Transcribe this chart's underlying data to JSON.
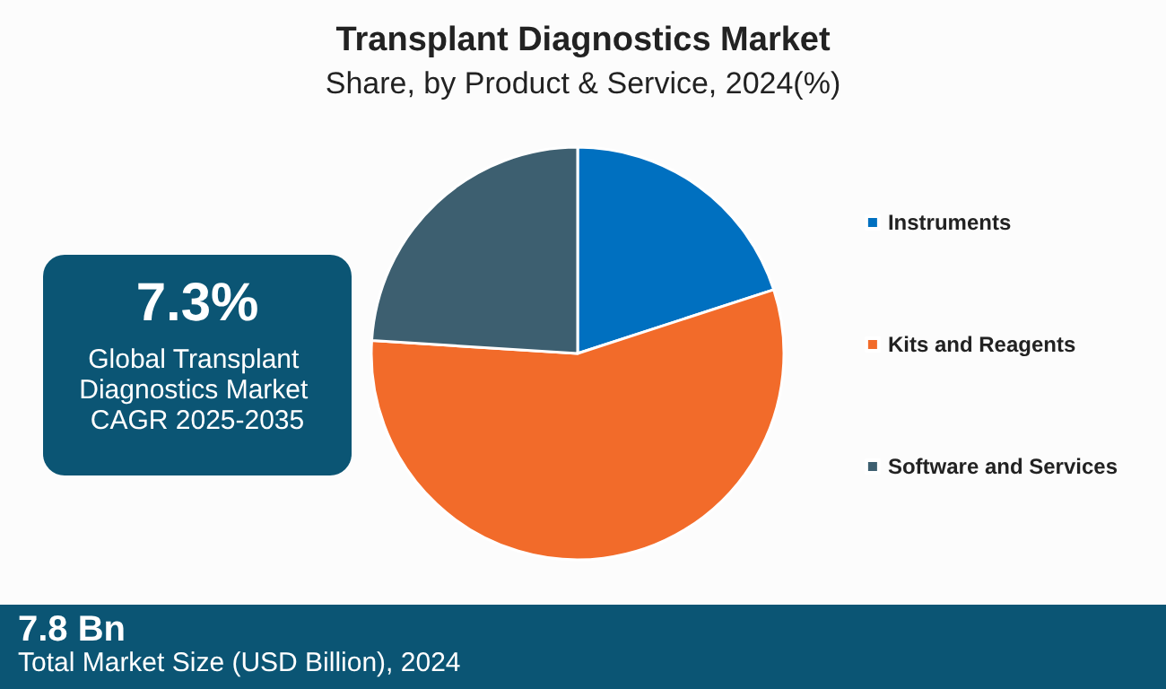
{
  "chart_data": {
    "type": "pie",
    "title": "Transplant Diagnostics Market",
    "subtitle": "Share, by Product & Service, 2024(%)",
    "categories": [
      "Instruments",
      "Kits and Reagents",
      "Software and Services"
    ],
    "values": [
      20,
      56,
      24
    ],
    "colors": [
      "#0070c0",
      "#f26b2a",
      "#3d5f70"
    ],
    "legend": "right",
    "annotations": [
      "7.3%",
      "Global Transplant Diagnostics Market CAGR 2025-2035",
      "7.8 Bn",
      "Total Market Size (USD Billion), 2024"
    ]
  }
}
